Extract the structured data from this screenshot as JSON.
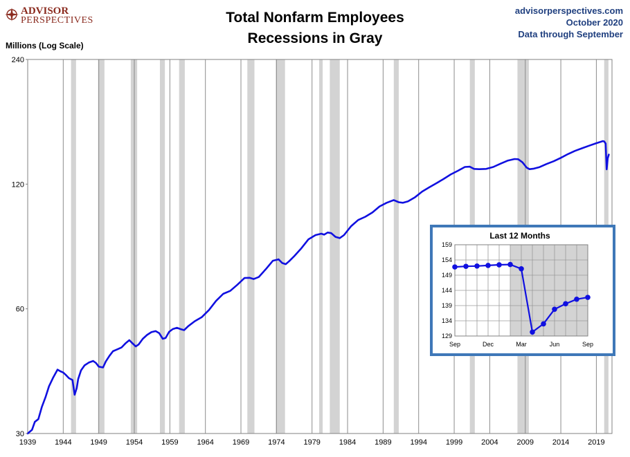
{
  "logo": {
    "name": "ADVISOR",
    "sub": "PERSPECTIVES"
  },
  "header": {
    "title_line1": "Total Nonfarm Employees",
    "title_line2": "Recessions in Gray",
    "site": "advisorperspectives.com",
    "date": "October 2020",
    "data_through": "Data through September"
  },
  "colors": {
    "line": "#1010e0",
    "recession": "#d3d3d3",
    "inset_border": "#3f78b8",
    "logo": "#8a2a1e",
    "header_text": "#1f3f7f"
  },
  "chart_data": [
    {
      "type": "line",
      "title": "Total Nonfarm Employees",
      "subtitle": "Recessions in Gray",
      "xlabel": "",
      "ylabel": "Millions (Log Scale)",
      "y_scale": "log",
      "ylim": [
        30,
        240
      ],
      "yticks": [
        30,
        60,
        120,
        240
      ],
      "xlim": [
        1939.0,
        2021.2
      ],
      "xticks": [
        1939,
        1944,
        1949,
        1954,
        1959,
        1964,
        1969,
        1974,
        1979,
        1984,
        1989,
        1994,
        1999,
        2004,
        2009,
        2014,
        2019
      ],
      "grid": "vertical",
      "recessions": [
        [
          1945.1,
          1945.8
        ],
        [
          1948.9,
          1949.8
        ],
        [
          1953.5,
          1954.4
        ],
        [
          1957.6,
          1958.3
        ],
        [
          1960.3,
          1961.1
        ],
        [
          1969.9,
          1970.9
        ],
        [
          1973.9,
          1975.2
        ],
        [
          1980.0,
          1980.5
        ],
        [
          1981.5,
          1982.9
        ],
        [
          1990.5,
          1991.2
        ],
        [
          2001.2,
          2001.9
        ],
        [
          2007.9,
          2009.5
        ],
        [
          2020.1,
          2020.7
        ]
      ],
      "series": [
        {
          "x": [
            1939.0,
            1939.6,
            1940.0,
            1940.5,
            1941.0,
            1941.5,
            1942.0,
            1942.6,
            1943.2,
            1943.6,
            1944.0,
            1944.4,
            1944.8,
            1945.3,
            1945.6,
            1945.9,
            1946.1,
            1946.5,
            1947.0,
            1947.6,
            1948.2,
            1948.6,
            1949.0,
            1949.6,
            1950.0,
            1950.5,
            1951.0,
            1951.6,
            1952.2,
            1952.8,
            1953.3,
            1953.8,
            1954.2,
            1954.6,
            1955.2,
            1955.8,
            1956.4,
            1957.0,
            1957.5,
            1958.0,
            1958.4,
            1958.9,
            1959.4,
            1960.0,
            1960.5,
            1961.0,
            1961.6,
            1962.5,
            1963.5,
            1964.5,
            1965.5,
            1966.5,
            1967.5,
            1968.5,
            1969.5,
            1970.2,
            1970.8,
            1971.5,
            1972.5,
            1973.5,
            1974.3,
            1974.8,
            1975.3,
            1975.8,
            1976.5,
            1977.5,
            1978.5,
            1979.5,
            1980.3,
            1980.7,
            1981.2,
            1981.7,
            1982.3,
            1982.9,
            1983.5,
            1984.5,
            1985.5,
            1986.5,
            1987.5,
            1988.5,
            1989.5,
            1990.5,
            1991.2,
            1991.8,
            1992.5,
            1993.5,
            1994.5,
            1995.5,
            1996.5,
            1997.5,
            1998.5,
            1999.5,
            2000.5,
            2001.2,
            2001.8,
            2002.5,
            2003.5,
            2004.5,
            2005.5,
            2006.5,
            2007.5,
            2008.0,
            2008.6,
            2009.2,
            2009.6,
            2010.2,
            2011.0,
            2012.0,
            2013.0,
            2014.0,
            2015.0,
            2016.0,
            2017.0,
            2018.0,
            2019.0,
            2019.9,
            2020.1,
            2020.3,
            2020.45,
            2020.6,
            2020.75
          ],
          "values": [
            30.0,
            30.6,
            32.0,
            32.5,
            34.8,
            36.7,
            39.0,
            41.0,
            42.8,
            42.4,
            42.1,
            41.5,
            40.8,
            40.4,
            37.2,
            38.6,
            40.6,
            42.6,
            43.8,
            44.5,
            44.9,
            44.4,
            43.5,
            43.3,
            44.8,
            46.2,
            47.4,
            47.9,
            48.4,
            49.6,
            50.4,
            49.4,
            48.7,
            49.2,
            50.8,
            51.9,
            52.7,
            53.0,
            52.4,
            50.8,
            51.0,
            52.8,
            53.6,
            54.0,
            53.6,
            53.3,
            54.5,
            56.0,
            57.3,
            59.6,
            62.7,
            65.2,
            66.3,
            68.6,
            71.2,
            71.3,
            70.8,
            71.6,
            74.8,
            78.4,
            79.0,
            77.4,
            76.9,
            78.2,
            80.4,
            84.0,
            88.3,
            90.4,
            91.1,
            90.6,
            91.7,
            91.4,
            89.5,
            88.9,
            90.4,
            95.0,
            98.3,
            100.1,
            102.5,
            106.0,
            108.2,
            109.8,
            108.5,
            108.2,
            109.0,
            111.6,
            115.2,
            117.9,
            120.6,
            123.5,
            126.6,
            129.2,
            132.0,
            132.2,
            130.6,
            130.4,
            130.6,
            132.0,
            134.4,
            136.7,
            138.0,
            137.8,
            135.5,
            131.5,
            130.4,
            130.8,
            131.9,
            134.2,
            136.3,
            138.9,
            141.8,
            144.4,
            146.5,
            148.6,
            150.7,
            152.4,
            152.2,
            150.4,
            130.3,
            138.5,
            141.4
          ]
        }
      ]
    },
    {
      "type": "line",
      "title": "Last 12 Months",
      "x_tick_labels": [
        "Sep",
        "Dec",
        "Mar",
        "Jun",
        "Sep"
      ],
      "ylim": [
        129,
        159
      ],
      "yticks": [
        129,
        134,
        139,
        144,
        149,
        154,
        159
      ],
      "shaded": [
        "Feb",
        "Sep"
      ],
      "grid": "both",
      "series": [
        {
          "x": [
            "Sep",
            "Oct",
            "Nov",
            "Dec",
            "Jan",
            "Feb",
            "Mar",
            "Apr",
            "May",
            "Jun",
            "Jul",
            "Aug",
            "Sep"
          ],
          "values": [
            151.7,
            151.9,
            152.0,
            152.2,
            152.4,
            152.5,
            151.1,
            130.3,
            133.0,
            137.8,
            139.6,
            141.1,
            141.7
          ]
        }
      ]
    }
  ]
}
